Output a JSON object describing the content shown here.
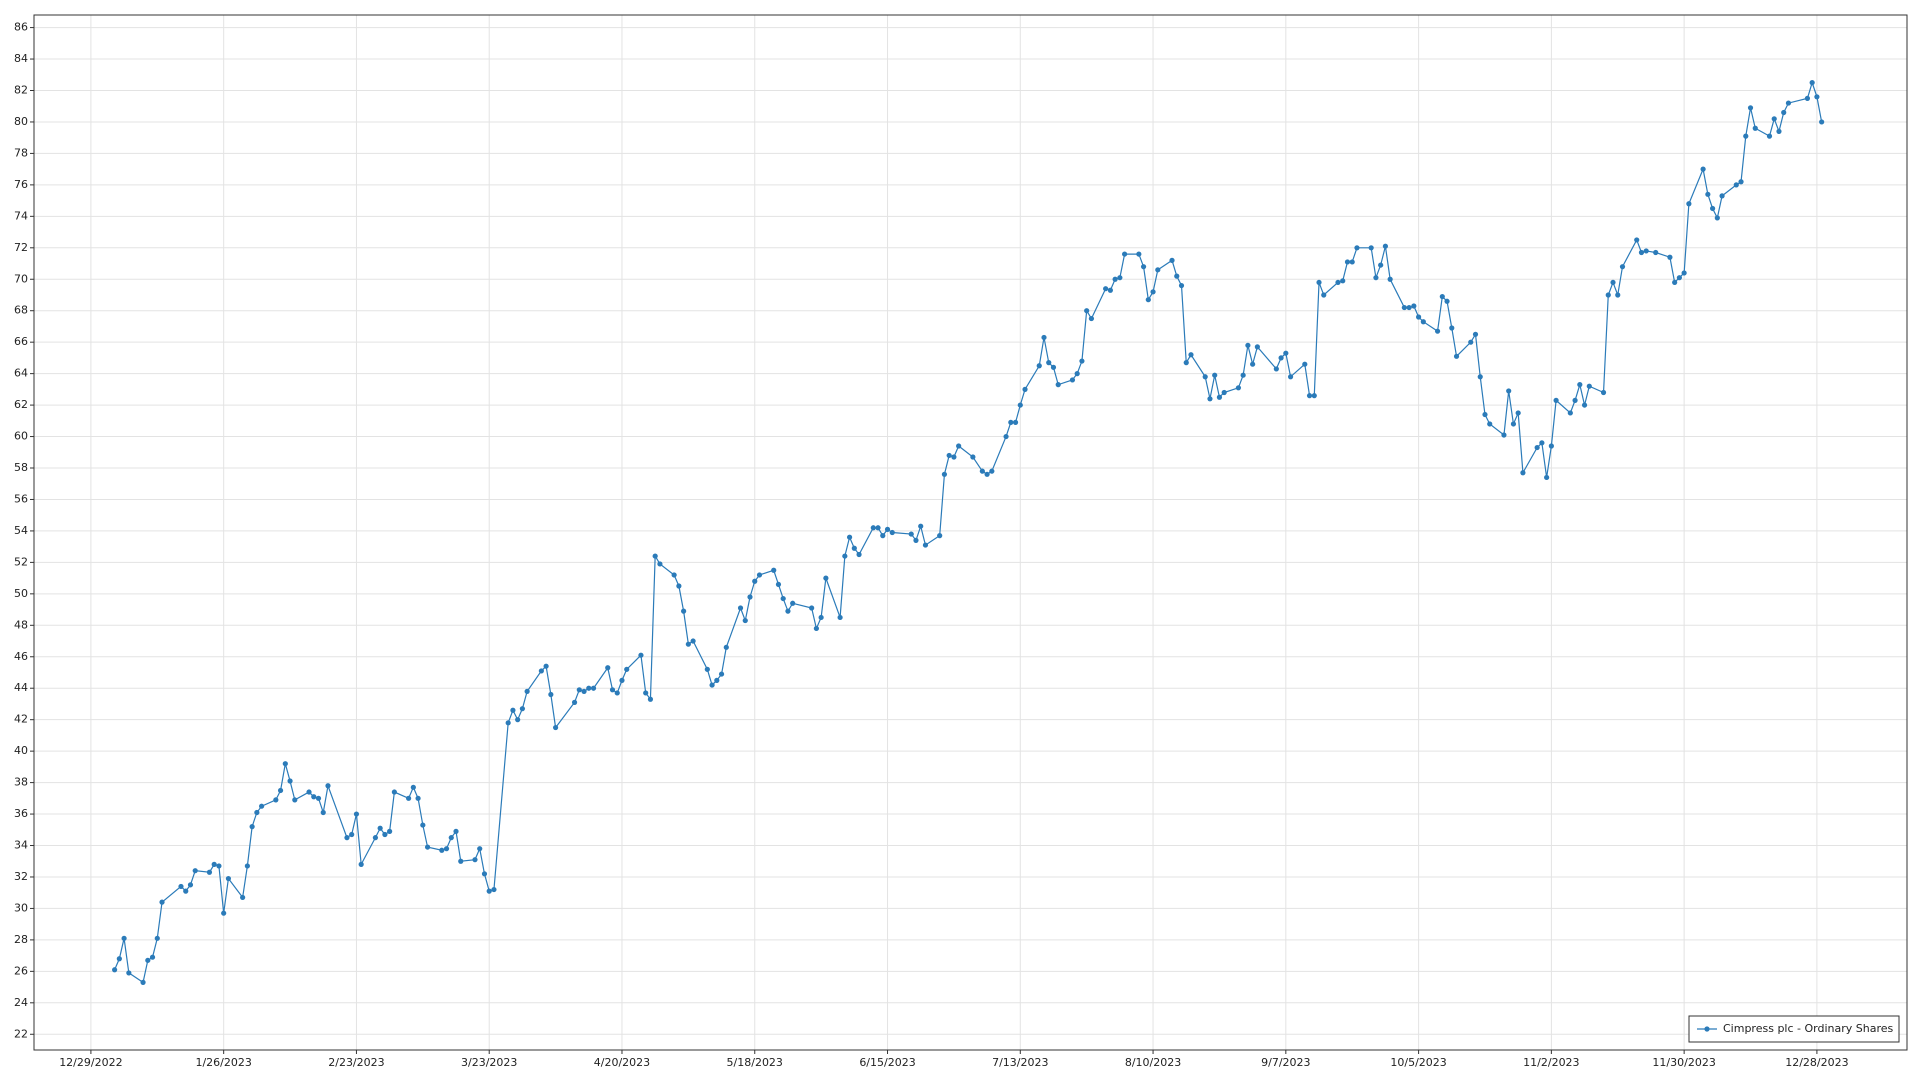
{
  "chart_data": {
    "type": "line",
    "x": [
      "1/3/2023",
      "1/4/2023",
      "1/5/2023",
      "1/6/2023",
      "1/9/2023",
      "1/10/2023",
      "1/11/2023",
      "1/12/2023",
      "1/13/2023",
      "1/17/2023",
      "1/18/2023",
      "1/19/2023",
      "1/20/2023",
      "1/23/2023",
      "1/24/2023",
      "1/25/2023",
      "1/26/2023",
      "1/27/2023",
      "1/30/2023",
      "1/31/2023",
      "2/1/2023",
      "2/2/2023",
      "2/3/2023",
      "2/6/2023",
      "2/7/2023",
      "2/8/2023",
      "2/9/2023",
      "2/10/2023",
      "2/13/2023",
      "2/14/2023",
      "2/15/2023",
      "2/16/2023",
      "2/17/2023",
      "2/21/2023",
      "2/22/2023",
      "2/23/2023",
      "2/24/2023",
      "2/27/2023",
      "2/28/2023",
      "3/1/2023",
      "3/2/2023",
      "3/3/2023",
      "3/6/2023",
      "3/7/2023",
      "3/8/2023",
      "3/9/2023",
      "3/10/2023",
      "3/13/2023",
      "3/14/2023",
      "3/15/2023",
      "3/16/2023",
      "3/17/2023",
      "3/20/2023",
      "3/21/2023",
      "3/22/2023",
      "3/23/2023",
      "3/24/2023",
      "3/27/2023",
      "3/28/2023",
      "3/29/2023",
      "3/30/2023",
      "3/31/2023",
      "4/3/2023",
      "4/4/2023",
      "4/5/2023",
      "4/6/2023",
      "4/10/2023",
      "4/11/2023",
      "4/12/2023",
      "4/13/2023",
      "4/14/2023",
      "4/17/2023",
      "4/18/2023",
      "4/19/2023",
      "4/20/2023",
      "4/21/2023",
      "4/24/2023",
      "4/25/2023",
      "4/26/2023",
      "4/27/2023",
      "4/28/2023",
      "5/1/2023",
      "5/2/2023",
      "5/3/2023",
      "5/4/2023",
      "5/5/2023",
      "5/8/2023",
      "5/9/2023",
      "5/10/2023",
      "5/11/2023",
      "5/12/2023",
      "5/15/2023",
      "5/16/2023",
      "5/17/2023",
      "5/18/2023",
      "5/19/2023",
      "5/22/2023",
      "5/23/2023",
      "5/24/2023",
      "5/25/2023",
      "5/26/2023",
      "5/30/2023",
      "5/31/2023",
      "6/1/2023",
      "6/2/2023",
      "6/5/2023",
      "6/6/2023",
      "6/7/2023",
      "6/8/2023",
      "6/9/2023",
      "6/12/2023",
      "6/13/2023",
      "6/14/2023",
      "6/15/2023",
      "6/16/2023",
      "6/20/2023",
      "6/21/2023",
      "6/22/2023",
      "6/23/2023",
      "6/26/2023",
      "6/27/2023",
      "6/28/2023",
      "6/29/2023",
      "6/30/2023",
      "7/3/2023",
      "7/5/2023",
      "7/6/2023",
      "7/7/2023",
      "7/10/2023",
      "7/11/2023",
      "7/12/2023",
      "7/13/2023",
      "7/14/2023",
      "7/17/2023",
      "7/18/2023",
      "7/19/2023",
      "7/20/2023",
      "7/21/2023",
      "7/24/2023",
      "7/25/2023",
      "7/26/2023",
      "7/27/2023",
      "7/28/2023",
      "7/31/2023",
      "8/1/2023",
      "8/2/2023",
      "8/3/2023",
      "8/4/2023",
      "8/7/2023",
      "8/8/2023",
      "8/9/2023",
      "8/10/2023",
      "8/11/2023",
      "8/14/2023",
      "8/15/2023",
      "8/16/2023",
      "8/17/2023",
      "8/18/2023",
      "8/21/2023",
      "8/22/2023",
      "8/23/2023",
      "8/24/2023",
      "8/25/2023",
      "8/28/2023",
      "8/29/2023",
      "8/30/2023",
      "8/31/2023",
      "9/1/2023",
      "9/5/2023",
      "9/6/2023",
      "9/7/2023",
      "9/8/2023",
      "9/11/2023",
      "9/12/2023",
      "9/13/2023",
      "9/14/2023",
      "9/15/2023",
      "9/18/2023",
      "9/19/2023",
      "9/20/2023",
      "9/21/2023",
      "9/22/2023",
      "9/25/2023",
      "9/26/2023",
      "9/27/2023",
      "9/28/2023",
      "9/29/2023",
      "10/2/2023",
      "10/3/2023",
      "10/4/2023",
      "10/5/2023",
      "10/6/2023",
      "10/9/2023",
      "10/10/2023",
      "10/11/2023",
      "10/12/2023",
      "10/13/2023",
      "10/16/2023",
      "10/17/2023",
      "10/18/2023",
      "10/19/2023",
      "10/20/2023",
      "10/23/2023",
      "10/24/2023",
      "10/25/2023",
      "10/26/2023",
      "10/27/2023",
      "10/30/2023",
      "10/31/2023",
      "11/1/2023",
      "11/2/2023",
      "11/3/2023",
      "11/6/2023",
      "11/7/2023",
      "11/8/2023",
      "11/9/2023",
      "11/10/2023",
      "11/13/2023",
      "11/14/2023",
      "11/15/2023",
      "11/16/2023",
      "11/17/2023",
      "11/20/2023",
      "11/21/2023",
      "11/22/2023",
      "11/24/2023",
      "11/27/2023",
      "11/28/2023",
      "11/29/2023",
      "11/30/2023",
      "12/1/2023",
      "12/4/2023",
      "12/5/2023",
      "12/6/2023",
      "12/7/2023",
      "12/8/2023",
      "12/11/2023",
      "12/12/2023",
      "12/13/2023",
      "12/14/2023",
      "12/15/2023",
      "12/18/2023",
      "12/19/2023",
      "12/20/2023",
      "12/21/2023",
      "12/22/2023",
      "12/26/2023",
      "12/27/2023",
      "12/28/2023",
      "12/29/2023"
    ],
    "series": [
      {
        "name": "Cimpress plc - Ordinary Shares",
        "color": "#2b7bb9",
        "values": [
          26.1,
          26.8,
          28.1,
          25.9,
          25.3,
          26.7,
          26.9,
          28.1,
          30.4,
          31.4,
          31.1,
          31.5,
          32.4,
          32.3,
          32.8,
          32.7,
          29.7,
          31.9,
          30.7,
          32.7,
          35.2,
          36.1,
          36.5,
          36.9,
          37.5,
          39.2,
          38.1,
          36.9,
          37.4,
          37.1,
          37.0,
          36.1,
          37.8,
          34.5,
          34.7,
          36.0,
          32.8,
          34.5,
          35.1,
          34.7,
          34.9,
          37.4,
          37.0,
          37.7,
          37.0,
          35.3,
          33.9,
          33.7,
          33.8,
          34.5,
          34.9,
          33.0,
          33.1,
          33.8,
          32.2,
          31.1,
          31.2,
          41.8,
          42.6,
          42.0,
          42.7,
          43.8,
          45.1,
          45.4,
          43.6,
          41.5,
          43.1,
          43.9,
          43.8,
          44.0,
          44.0,
          45.3,
          43.9,
          43.7,
          44.5,
          45.2,
          46.1,
          43.7,
          43.3,
          52.4,
          51.9,
          51.2,
          50.5,
          48.9,
          46.8,
          47.0,
          45.2,
          44.2,
          44.5,
          44.9,
          46.6,
          49.1,
          48.3,
          49.8,
          50.8,
          51.2,
          51.5,
          50.6,
          49.7,
          48.9,
          49.4,
          49.1,
          47.8,
          48.5,
          51.0,
          48.5,
          52.4,
          53.6,
          52.9,
          52.5,
          54.2,
          54.2,
          53.7,
          54.1,
          53.9,
          53.8,
          53.4,
          54.3,
          53.1,
          53.7,
          57.6,
          58.8,
          58.7,
          59.4,
          58.7,
          57.8,
          57.6,
          57.8,
          60.0,
          60.9,
          60.9,
          62.0,
          63.0,
          64.5,
          66.3,
          64.7,
          64.4,
          63.3,
          63.6,
          64.0,
          64.8,
          68.0,
          67.5,
          69.4,
          69.3,
          70.0,
          70.1,
          71.6,
          71.6,
          70.8,
          68.7,
          69.2,
          70.6,
          71.2,
          70.2,
          69.6,
          64.7,
          65.2,
          63.8,
          62.4,
          63.9,
          62.5,
          62.8,
          63.1,
          63.9,
          65.8,
          64.6,
          65.7,
          64.3,
          65.0,
          65.3,
          63.8,
          64.6,
          62.6,
          62.6,
          69.8,
          69.0,
          69.8,
          69.9,
          71.1,
          71.1,
          72.0,
          72.0,
          70.1,
          70.9,
          72.1,
          70.0,
          68.2,
          68.2,
          68.3,
          67.6,
          67.3,
          66.7,
          68.9,
          68.6,
          66.9,
          65.1,
          66.0,
          66.5,
          63.8,
          61.4,
          60.8,
          60.1,
          62.9,
          60.8,
          61.5,
          57.7,
          59.3,
          59.6,
          57.4,
          59.4,
          62.3,
          61.5,
          62.3,
          63.3,
          62.0,
          63.2,
          62.8,
          69.0,
          69.8,
          69.0,
          70.8,
          72.5,
          71.7,
          71.8,
          71.7,
          71.4,
          69.8,
          70.1,
          70.4,
          74.8,
          77.0,
          75.4,
          74.5,
          73.9,
          75.3,
          76.0,
          76.2,
          79.1,
          80.9,
          79.6,
          79.1,
          80.2,
          79.4,
          80.6,
          81.2,
          81.5,
          82.5,
          81.6,
          80.0
        ]
      }
    ],
    "xlim": [
      "12/17/2022",
      "1/16/2024"
    ],
    "xticks": [
      "12/29/2022",
      "1/26/2023",
      "2/23/2023",
      "3/23/2023",
      "4/20/2023",
      "5/18/2023",
      "6/15/2023",
      "7/13/2023",
      "8/10/2023",
      "9/7/2023",
      "10/5/2023",
      "11/2/2023",
      "11/30/2023",
      "12/28/2023"
    ],
    "ylim": [
      21,
      86.8
    ],
    "yticks": [
      22,
      24,
      26,
      28,
      30,
      32,
      34,
      36,
      38,
      40,
      42,
      44,
      46,
      48,
      50,
      52,
      54,
      56,
      58,
      60,
      62,
      64,
      66,
      68,
      70,
      72,
      74,
      76,
      78,
      80,
      82,
      84,
      86
    ],
    "grid": true,
    "legend": "lower right"
  }
}
